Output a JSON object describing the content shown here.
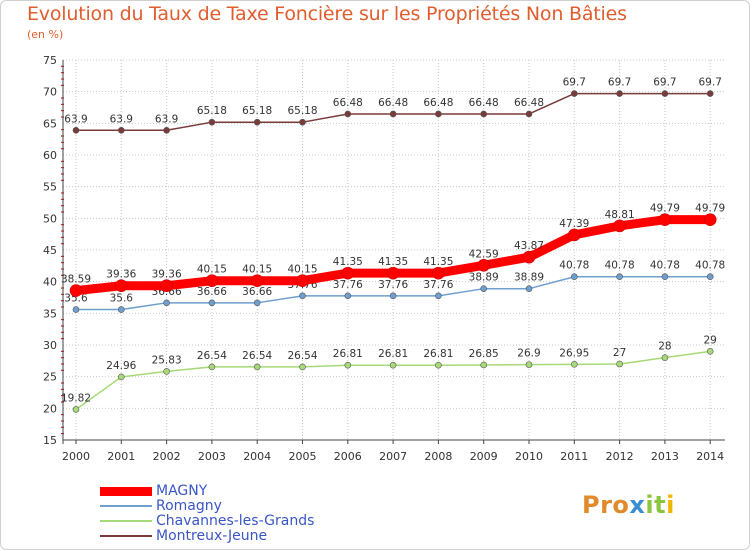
{
  "title": "Evolution du Taux de Taxe Foncière sur les Propriétés Non Bâties",
  "unit": "(en %)",
  "brand": {
    "text": "Proxiti",
    "parts": [
      "Pro",
      "x",
      "it",
      "i"
    ]
  },
  "colors": {
    "magny": "#ff0000",
    "romagny": "#6f9fcf",
    "chavannes": "#a6d977",
    "montreux": "#7a3b3b",
    "title": "#e05d2e",
    "legend_text": "#3a56c5"
  },
  "chart_data": {
    "type": "line",
    "title": "Evolution du Taux de Taxe Foncière sur les Propriétés Non Bâties",
    "ylabel": "(en %)",
    "xlabel": "",
    "ylim": [
      15,
      75
    ],
    "yticks": [
      15,
      20,
      25,
      30,
      35,
      40,
      45,
      50,
      55,
      60,
      65,
      70,
      75
    ],
    "grid": true,
    "categories": [
      "2000",
      "2001",
      "2002",
      "2003",
      "2004",
      "2005",
      "2006",
      "2007",
      "2008",
      "2009",
      "2010",
      "2011",
      "2012",
      "2013",
      "2014"
    ],
    "series": [
      {
        "key": "montreux",
        "name": "Montreux-Jeune",
        "values": [
          63.9,
          63.9,
          63.9,
          65.18,
          65.18,
          65.18,
          66.48,
          66.48,
          66.48,
          66.48,
          66.48,
          69.7,
          69.7,
          69.7,
          69.7
        ],
        "labels": [
          "63.9",
          "63.9",
          "63.9",
          "65.18",
          "65.18",
          "65.18",
          "66.48",
          "66.48",
          "66.48",
          "66.48",
          "66.48",
          "69.7",
          "69.7",
          "69.7",
          "69.7"
        ]
      },
      {
        "key": "romagny",
        "name": "Romagny",
        "values": [
          35.6,
          35.6,
          36.66,
          36.66,
          36.66,
          37.76,
          37.76,
          37.76,
          37.76,
          38.89,
          38.89,
          40.78,
          40.78,
          40.78,
          40.78
        ],
        "labels": [
          "35.6",
          "35.6",
          "36.66",
          "36.66",
          "36.66",
          "37.76",
          "37.76",
          "37.76",
          "37.76",
          "38.89",
          "38.89",
          "40.78",
          "40.78",
          "40.78",
          "40.78"
        ]
      },
      {
        "key": "chavannes",
        "name": "Chavannes-les-Grands",
        "values": [
          19.82,
          24.96,
          25.83,
          26.54,
          26.54,
          26.54,
          26.81,
          26.81,
          26.81,
          26.85,
          26.9,
          26.95,
          27,
          28,
          29
        ],
        "labels": [
          "19.82",
          "24.96",
          "25.83",
          "26.54",
          "26.54",
          "26.54",
          "26.81",
          "26.81",
          "26.81",
          "26.85",
          "26.9",
          "26.95",
          "27",
          "28",
          "29"
        ]
      },
      {
        "key": "magny",
        "name": "MAGNY",
        "values": [
          38.59,
          39.36,
          39.36,
          40.15,
          40.15,
          40.15,
          41.35,
          41.35,
          41.35,
          42.59,
          43.87,
          47.39,
          48.81,
          49.79,
          49.79
        ],
        "labels": [
          "38.59",
          "39.36",
          "39.36",
          "40.15",
          "40.15",
          "40.15",
          "41.35",
          "41.35",
          "41.35",
          "42.59",
          "43.87",
          "47.39",
          "48.81",
          "49.79",
          "49.79"
        ]
      }
    ],
    "legend": [
      {
        "key": "magny",
        "label": "MAGNY"
      },
      {
        "key": "romagny",
        "label": "Romagny"
      },
      {
        "key": "chavannes",
        "label": "Chavannes-les-Grands"
      },
      {
        "key": "montreux",
        "label": "Montreux-Jeune"
      }
    ],
    "legend_position": "bottom-left"
  }
}
